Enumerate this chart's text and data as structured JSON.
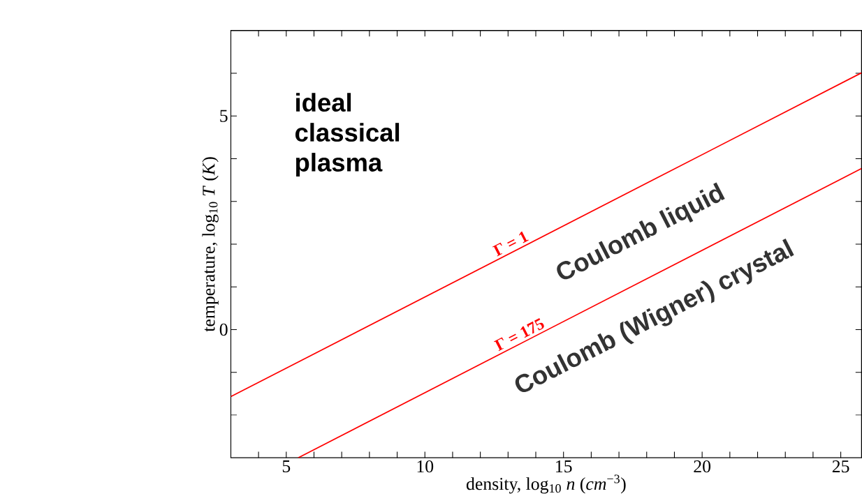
{
  "chart_data": {
    "type": "line",
    "xlabel": "density, log$_{10}$ *n* (*cm*$^{−3}$)",
    "ylabel": "temperature, log$_{10}$ *T* (*K*)",
    "series": [
      {
        "name": "Γ = 1",
        "color": "#ff0000",
        "x": [
          3,
          25.75
        ],
        "values": [
          -1.57,
          6.01
        ]
      },
      {
        "name": "Γ = 175",
        "color": "#ff0000",
        "x": [
          5.43,
          25.75
        ],
        "values": [
          -3,
          3.77
        ]
      }
    ],
    "annotations": [
      {
        "text": "ideal classical plasma"
      },
      {
        "text": "Coulomb liquid"
      },
      {
        "text": "Coulomb (Wigner) crystal"
      }
    ],
    "xlim": [
      3,
      25.75
    ],
    "ylim": [
      -3,
      7
    ],
    "xticks": [
      {
        "value": 4,
        "label": null
      },
      5,
      {
        "value": 6,
        "label": null
      },
      {
        "value": 7,
        "label": null
      },
      {
        "value": 8,
        "label": null
      },
      {
        "value": 9,
        "label": null
      },
      10,
      {
        "value": 11,
        "label": null
      },
      {
        "value": 12,
        "label": null
      },
      {
        "value": 13,
        "label": null
      },
      {
        "value": 14,
        "label": null
      },
      15,
      {
        "value": 16,
        "label": null
      },
      {
        "value": 17,
        "label": null
      },
      {
        "value": 18,
        "label": null
      },
      {
        "value": 19,
        "label": null
      },
      20,
      {
        "value": 21,
        "label": null
      },
      {
        "value": 22,
        "label": null
      },
      {
        "value": 23,
        "label": null
      },
      {
        "value": 24,
        "label": null
      },
      25
    ],
    "yticks": [
      {
        "value": -2,
        "label": null
      },
      {
        "value": -1,
        "label": null
      },
      0,
      {
        "value": 1,
        "label": null
      },
      {
        "value": 2,
        "label": null
      },
      {
        "value": 3,
        "label": null
      },
      {
        "value": 4,
        "label": null
      },
      5,
      {
        "value": 6,
        "label": null
      }
    ],
    "grid": false,
    "legend": false,
    "marker": "none",
    "line_style": "solid"
  }
}
